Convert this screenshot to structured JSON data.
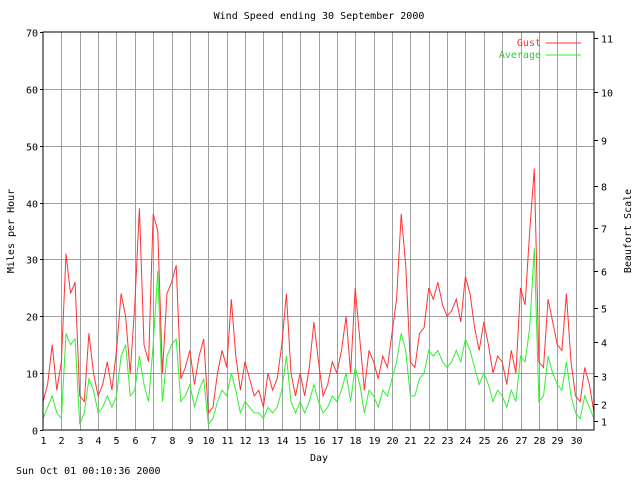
{
  "footer": {
    "timestamp": "Sun Oct 01 00:10:36 2000"
  },
  "colors": {
    "gust": "#ff3333",
    "average": "#33ee33",
    "grid": "#a0a0a0",
    "axis": "#000000",
    "background": "#ffffff"
  },
  "chart_data": {
    "type": "line",
    "title": "Wind Speed ending 30 September 2000",
    "xlabel": "Day",
    "ylabel": "Miles per Hour",
    "ylabel_right": "Beaufort Scale",
    "xlim": [
      1,
      31
    ],
    "ylim": [
      0,
      70
    ],
    "x_ticks": [
      "1",
      "2",
      "3",
      "4",
      "5",
      "6",
      "7",
      "8",
      "9",
      "10",
      "11",
      "12",
      "13",
      "14",
      "15",
      "16",
      "17",
      "18",
      "19",
      "20",
      "21",
      "22",
      "23",
      "24",
      "25",
      "26",
      "27",
      "28",
      "29",
      "30"
    ],
    "y_ticks": [
      0,
      10,
      20,
      30,
      40,
      50,
      60,
      70
    ],
    "beaufort_ticks": [
      {
        "label": "1",
        "mph": 1.5
      },
      {
        "label": "2",
        "mph": 4.5
      },
      {
        "label": "3",
        "mph": 9.5
      },
      {
        "label": "4",
        "mph": 15.5
      },
      {
        "label": "5",
        "mph": 21.5
      },
      {
        "label": "6",
        "mph": 28.0
      },
      {
        "label": "7",
        "mph": 35.5
      },
      {
        "label": "8",
        "mph": 43.0
      },
      {
        "label": "9",
        "mph": 51.0
      },
      {
        "label": "10",
        "mph": 59.5
      },
      {
        "label": "11",
        "mph": 69.0
      }
    ],
    "grid": true,
    "legend_position": "top-right",
    "series": [
      {
        "name": "Gust",
        "color": "#ff3333",
        "x": [
          1.0,
          1.25,
          1.5,
          1.75,
          2.0,
          2.25,
          2.5,
          2.75,
          3.0,
          3.25,
          3.5,
          3.75,
          4.0,
          4.25,
          4.5,
          4.75,
          5.0,
          5.25,
          5.5,
          5.75,
          6.0,
          6.25,
          6.5,
          6.75,
          7.0,
          7.25,
          7.5,
          7.75,
          8.0,
          8.25,
          8.5,
          8.75,
          9.0,
          9.25,
          9.5,
          9.75,
          10.0,
          10.25,
          10.5,
          10.75,
          11.0,
          11.25,
          11.5,
          11.75,
          12.0,
          12.25,
          12.5,
          12.75,
          13.0,
          13.25,
          13.5,
          13.75,
          14.0,
          14.25,
          14.5,
          14.75,
          15.0,
          15.25,
          15.5,
          15.75,
          16.0,
          16.25,
          16.5,
          16.75,
          17.0,
          17.25,
          17.5,
          17.75,
          18.0,
          18.25,
          18.5,
          18.75,
          19.0,
          19.25,
          19.5,
          19.75,
          20.0,
          20.25,
          20.5,
          20.75,
          21.0,
          21.25,
          21.5,
          21.75,
          22.0,
          22.25,
          22.5,
          22.75,
          23.0,
          23.25,
          23.5,
          23.75,
          24.0,
          24.25,
          24.5,
          24.75,
          25.0,
          25.25,
          25.5,
          25.75,
          26.0,
          26.25,
          26.5,
          26.75,
          27.0,
          27.25,
          27.5,
          27.75,
          28.0,
          28.25,
          28.5,
          28.75,
          29.0,
          29.25,
          29.5,
          29.75,
          30.0,
          30.25,
          30.5,
          30.75,
          31.0
        ],
        "values": [
          5,
          8,
          15,
          7,
          12,
          31,
          24,
          26,
          6,
          5,
          17,
          10,
          6,
          8,
          12,
          7,
          14,
          24,
          20,
          10,
          22,
          39,
          15,
          12,
          38,
          35,
          10,
          24,
          26,
          29,
          9,
          11,
          14,
          8,
          13,
          16,
          3,
          4,
          10,
          14,
          11,
          23,
          13,
          7,
          12,
          9,
          6,
          7,
          4,
          10,
          7,
          9,
          15,
          24,
          10,
          6,
          10,
          6,
          11,
          19,
          12,
          6,
          8,
          12,
          10,
          14,
          20,
          10,
          25,
          16,
          7,
          14,
          12,
          9,
          13,
          11,
          17,
          23,
          38,
          29,
          12,
          11,
          17,
          18,
          25,
          23,
          26,
          22,
          20,
          21,
          23,
          19,
          27,
          24,
          18,
          14,
          19,
          15,
          10,
          13,
          12,
          8,
          14,
          10,
          25,
          22,
          35,
          46,
          12,
          11,
          23,
          19,
          15,
          14,
          24,
          12,
          6,
          5,
          11,
          8,
          3
        ]
      },
      {
        "name": "Average",
        "color": "#33ee33",
        "x": [
          1.0,
          1.25,
          1.5,
          1.75,
          2.0,
          2.25,
          2.5,
          2.75,
          3.0,
          3.25,
          3.5,
          3.75,
          4.0,
          4.25,
          4.5,
          4.75,
          5.0,
          5.25,
          5.5,
          5.75,
          6.0,
          6.25,
          6.5,
          6.75,
          7.0,
          7.25,
          7.5,
          7.75,
          8.0,
          8.25,
          8.5,
          8.75,
          9.0,
          9.25,
          9.5,
          9.75,
          10.0,
          10.25,
          10.5,
          10.75,
          11.0,
          11.25,
          11.5,
          11.75,
          12.0,
          12.25,
          12.5,
          12.75,
          13.0,
          13.25,
          13.5,
          13.75,
          14.0,
          14.25,
          14.5,
          14.75,
          15.0,
          15.25,
          15.5,
          15.75,
          16.0,
          16.25,
          16.5,
          16.75,
          17.0,
          17.25,
          17.5,
          17.75,
          18.0,
          18.25,
          18.5,
          18.75,
          19.0,
          19.25,
          19.5,
          19.75,
          20.0,
          20.25,
          20.5,
          20.75,
          21.0,
          21.25,
          21.5,
          21.75,
          22.0,
          22.25,
          22.5,
          22.75,
          23.0,
          23.25,
          23.5,
          23.75,
          24.0,
          24.25,
          24.5,
          24.75,
          25.0,
          25.25,
          25.5,
          25.75,
          26.0,
          26.25,
          26.5,
          26.75,
          27.0,
          27.25,
          27.5,
          27.75,
          28.0,
          28.25,
          28.5,
          28.75,
          29.0,
          29.25,
          29.5,
          29.75,
          30.0,
          30.25,
          30.5,
          30.75,
          31.0
        ],
        "values": [
          2,
          4,
          6,
          3,
          2,
          17,
          15,
          16,
          1,
          3,
          9,
          7,
          3,
          4,
          6,
          4,
          6,
          13,
          15,
          6,
          7,
          13,
          8,
          5,
          15,
          28,
          5,
          13,
          15,
          16,
          5,
          6,
          8,
          4,
          7,
          9,
          1,
          2,
          5,
          7,
          6,
          10,
          7,
          3,
          5,
          4,
          3,
          3,
          2,
          4,
          3,
          4,
          7,
          13,
          5,
          3,
          5,
          3,
          5,
          8,
          5,
          3,
          4,
          6,
          5,
          7,
          10,
          5,
          11,
          8,
          3,
          7,
          6,
          4,
          7,
          6,
          9,
          12,
          17,
          14,
          6,
          6,
          9,
          10,
          14,
          13,
          14,
          12,
          11,
          12,
          14,
          12,
          16,
          14,
          11,
          8,
          10,
          8,
          5,
          7,
          6,
          4,
          7,
          5,
          13,
          12,
          18,
          32,
          5,
          6,
          13,
          10,
          8,
          7,
          12,
          6,
          3,
          2,
          6,
          4,
          2
        ]
      }
    ]
  }
}
